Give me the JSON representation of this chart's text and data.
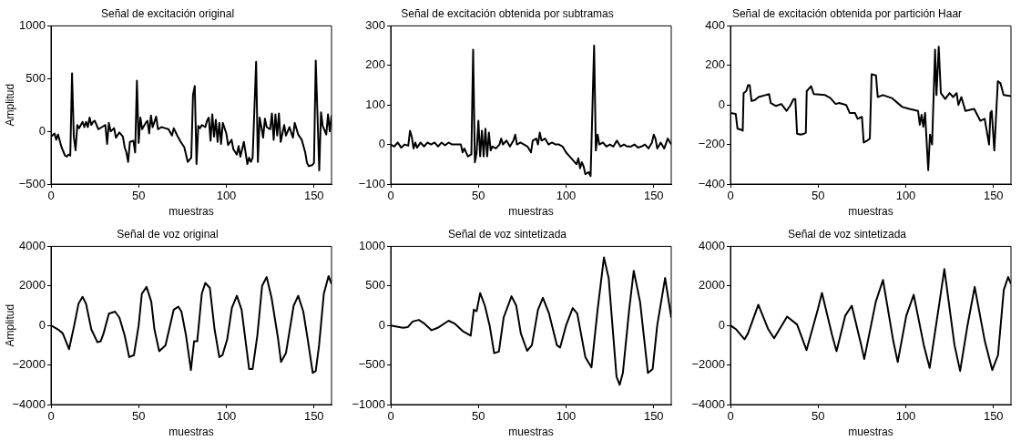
{
  "chart_data": [
    {
      "type": "line",
      "title": "Señal de excitación original",
      "xlabel": "muestras",
      "ylabel": "Amplitud",
      "color": "#000000",
      "xlim": [
        0,
        160
      ],
      "xticks": [
        0,
        50,
        100,
        150
      ],
      "ylim": [
        -500,
        1000
      ],
      "yticks": [
        -500,
        0,
        500,
        1000
      ],
      "grid": false,
      "legend": false,
      "x": [
        0,
        2,
        3,
        4,
        6,
        8,
        9,
        10,
        11,
        12,
        13,
        14,
        15,
        16,
        18,
        19,
        20,
        21,
        22,
        23,
        24,
        25,
        27,
        29,
        31,
        32,
        33,
        34,
        36,
        37,
        39,
        41,
        42,
        43,
        44,
        45,
        47,
        48,
        49,
        50,
        51,
        52,
        54,
        55,
        56,
        57,
        58,
        60,
        61,
        63,
        65,
        67,
        69,
        70,
        72,
        74,
        76,
        78,
        80,
        81,
        82,
        83,
        84,
        85,
        86,
        88,
        89,
        90,
        91,
        92,
        93,
        94,
        95,
        96,
        97,
        98,
        100,
        101,
        103,
        104,
        106,
        107,
        108,
        110,
        112,
        113,
        114,
        115,
        117,
        118,
        119,
        120,
        121,
        122,
        123,
        125,
        126,
        127,
        128,
        129,
        130,
        131,
        133,
        134,
        136,
        138,
        139,
        141,
        143,
        145,
        146,
        147,
        149,
        150,
        151,
        153,
        154,
        155,
        157,
        158,
        159,
        160
      ],
      "values": [
        -50,
        -20,
        -80,
        -30,
        -150,
        -230,
        -240,
        -220,
        -230,
        550,
        -50,
        -180,
        60,
        30,
        90,
        40,
        90,
        40,
        130,
        60,
        90,
        100,
        20,
        40,
        60,
        -120,
        80,
        0,
        30,
        -60,
        -10,
        -50,
        -150,
        -200,
        -290,
        -100,
        -90,
        -200,
        480,
        -110,
        130,
        20,
        80,
        100,
        -20,
        150,
        40,
        140,
        20,
        40,
        30,
        20,
        -40,
        30,
        -40,
        -100,
        -150,
        -290,
        -250,
        350,
        430,
        -310,
        50,
        30,
        60,
        40,
        100,
        130,
        -90,
        160,
        -50,
        110,
        -100,
        80,
        -120,
        80,
        -20,
        -130,
        -80,
        -170,
        -220,
        -140,
        -240,
        -100,
        -310,
        -250,
        -290,
        -250,
        660,
        -290,
        130,
        40,
        -60,
        120,
        40,
        20,
        170,
        -80,
        160,
        -40,
        170,
        -100,
        60,
        -40,
        40,
        -60,
        80,
        -30,
        -80,
        -200,
        -300,
        -330,
        -320,
        -300,
        670,
        -370,
        180,
        50,
        -30,
        160,
        0,
        150
      ]
    },
    {
      "type": "line",
      "title": "Señal de excitación obtenida por subtramas",
      "xlabel": "muestras",
      "color": "#000000",
      "xlim": [
        0,
        160
      ],
      "xticks": [
        0,
        50,
        100,
        150
      ],
      "ylim": [
        -100,
        300
      ],
      "yticks": [
        -100,
        0,
        100,
        200,
        300
      ],
      "grid": false,
      "legend": false,
      "x": [
        0,
        2,
        4,
        6,
        8,
        10,
        11,
        12,
        13,
        14,
        15,
        17,
        19,
        21,
        23,
        25,
        27,
        29,
        31,
        33,
        35,
        40,
        41,
        42,
        44,
        46,
        47,
        48,
        49,
        50,
        51,
        52,
        53,
        54,
        55,
        56,
        57,
        58,
        60,
        62,
        63,
        64,
        66,
        68,
        70,
        71,
        72,
        74,
        76,
        78,
        80,
        81,
        83,
        84,
        85,
        86,
        88,
        90,
        92,
        94,
        96,
        98,
        100,
        102,
        104,
        106,
        107,
        108,
        109,
        110,
        111,
        113,
        114,
        116,
        117,
        118,
        119,
        121,
        123,
        125,
        127,
        129,
        131,
        133,
        135,
        137,
        139,
        141,
        143,
        145,
        147,
        149,
        150,
        151,
        152,
        154,
        156,
        158,
        160
      ],
      "values": [
        0,
        -5,
        5,
        -8,
        0,
        -3,
        35,
        20,
        -10,
        5,
        -8,
        5,
        -5,
        5,
        0,
        5,
        -5,
        5,
        -2,
        5,
        0,
        0,
        -20,
        -10,
        -30,
        -25,
        240,
        -45,
        -20,
        60,
        -30,
        35,
        -30,
        40,
        -30,
        30,
        -15,
        -5,
        -10,
        0,
        15,
        0,
        10,
        -5,
        10,
        25,
        0,
        5,
        0,
        -5,
        -20,
        10,
        15,
        0,
        30,
        10,
        15,
        0,
        5,
        0,
        0,
        -5,
        -20,
        -30,
        -40,
        -50,
        -35,
        -60,
        -45,
        -55,
        -75,
        -70,
        -80,
        250,
        -15,
        25,
        0,
        5,
        -5,
        0,
        -5,
        10,
        -5,
        0,
        -5,
        -5,
        0,
        -8,
        -5,
        0,
        -10,
        5,
        25,
        15,
        -10,
        5,
        -10,
        15,
        0
      ]
    },
    {
      "type": "line",
      "title": "Señal de excitación obtenida por partición Haar",
      "xlabel": "muestras",
      "color": "#000000",
      "xlim": [
        0,
        160
      ],
      "xticks": [
        0,
        50,
        100,
        150
      ],
      "ylim": [
        -400,
        400
      ],
      "yticks": [
        -400,
        -200,
        0,
        200,
        400
      ],
      "grid": false,
      "legend": false,
      "x": [
        0,
        3,
        4,
        6,
        7,
        7.5,
        9,
        10,
        11,
        12,
        14,
        16,
        20,
        22,
        23,
        26,
        29,
        32,
        34,
        36,
        37,
        38,
        40,
        42,
        43,
        43.5,
        46,
        47.5,
        54,
        57,
        60,
        62,
        66,
        68,
        71,
        72.5,
        75,
        76,
        78,
        79.5,
        80.5,
        83,
        84,
        87,
        92,
        98,
        102,
        107,
        108,
        109,
        110,
        111,
        112.8,
        113.8,
        115,
        116.7,
        117.5,
        118.8,
        120,
        122.5,
        125,
        127,
        129,
        130,
        131.7,
        134,
        139,
        142.5,
        145,
        147.5,
        148.3,
        149,
        150.5,
        152.5,
        154,
        155.8,
        160
      ],
      "values": [
        -40,
        -45,
        -120,
        -125,
        -130,
        60,
        70,
        100,
        100,
        20,
        25,
        40,
        50,
        55,
        10,
        -5,
        5,
        -30,
        -5,
        30,
        30,
        -145,
        -150,
        -145,
        -140,
        70,
        95,
        55,
        50,
        35,
        5,
        10,
        0,
        -40,
        -40,
        -70,
        -60,
        -190,
        -180,
        -170,
        155,
        150,
        40,
        50,
        35,
        -10,
        -20,
        -30,
        -100,
        -50,
        -110,
        -40,
        -330,
        -150,
        -200,
        280,
        50,
        295,
        60,
        30,
        60,
        40,
        60,
        0,
        40,
        -30,
        -20,
        -80,
        -70,
        -200,
        -40,
        -30,
        -230,
        120,
        110,
        50,
        45
      ]
    },
    {
      "type": "line",
      "title": "Señal de voz original",
      "xlabel": "muestras",
      "ylabel": "Amplitud",
      "color": "#000000",
      "xlim": [
        0,
        160
      ],
      "xticks": [
        0,
        50,
        100,
        150
      ],
      "ylim": [
        -4000,
        4000
      ],
      "yticks": [
        -4000,
        -2000,
        0,
        2000,
        4000
      ],
      "grid": false,
      "legend": false,
      "x": [
        0,
        4,
        6.7,
        10.3,
        12,
        13,
        15.7,
        18,
        20,
        23,
        26.5,
        28.3,
        30,
        33,
        36.5,
        39,
        42,
        44.6,
        47.3,
        50,
        51.8,
        54.5,
        57.2,
        59,
        61.7,
        65.3,
        70,
        72.6,
        74.4,
        77,
        79.8,
        81.6,
        83.4,
        86,
        88,
        90.6,
        93.3,
        96,
        97.8,
        100.5,
        103.2,
        106,
        108.7,
        113,
        115,
        117.7,
        120.4,
        123,
        125.8,
        129.4,
        131.2,
        134,
        138.4,
        141,
        143.9,
        146.6,
        149.3,
        151,
        152.9,
        155.6,
        158.3,
        160
      ],
      "values": [
        0,
        -200,
        -400,
        -1200,
        -500,
        -100,
        1100,
        1450,
        1100,
        -200,
        -850,
        -800,
        -400,
        600,
        700,
        400,
        -500,
        -1600,
        -1500,
        0,
        1600,
        1950,
        1200,
        -200,
        -1300,
        -1000,
        800,
        950,
        700,
        -500,
        -2250,
        -800,
        -800,
        1600,
        2150,
        1900,
        -200,
        -1600,
        -1500,
        -700,
        900,
        1500,
        800,
        -2200,
        -2200,
        -500,
        2000,
        2450,
        1400,
        -600,
        -1850,
        -1400,
        1000,
        1500,
        700,
        -800,
        -2400,
        -2300,
        -1000,
        1600,
        2500,
        2100
      ]
    },
    {
      "type": "line",
      "title": "Señal de voz sintetizada",
      "xlabel": "muestras",
      "color": "#000000",
      "xlim": [
        0,
        160
      ],
      "xticks": [
        0,
        50,
        100,
        150
      ],
      "ylim": [
        -1000,
        1000
      ],
      "yticks": [
        -1000,
        -500,
        0,
        500,
        1000
      ],
      "grid": false,
      "legend": false,
      "x": [
        0,
        7,
        9.8,
        12.5,
        16,
        18.8,
        23.3,
        26.8,
        33,
        36.7,
        41,
        45.6,
        47.4,
        49,
        51,
        53.7,
        56.4,
        59,
        61.7,
        64.4,
        68.9,
        71.6,
        74.2,
        77.8,
        80.5,
        84,
        86.8,
        90.3,
        94.8,
        96.6,
        100,
        103.8,
        106.4,
        111,
        114.5,
        118,
        121.6,
        124.3,
        128.8,
        130.6,
        132.4,
        136,
        138.6,
        142.2,
        146.7,
        149.4,
        152,
        156.5,
        160
      ],
      "values": [
        0,
        -30,
        -20,
        50,
        70,
        30,
        -60,
        -30,
        60,
        20,
        -70,
        -130,
        200,
        180,
        410,
        250,
        0,
        -350,
        -330,
        100,
        370,
        250,
        -100,
        -320,
        -250,
        200,
        350,
        150,
        -250,
        -280,
        0,
        220,
        150,
        -400,
        -530,
        200,
        860,
        600,
        -650,
        -750,
        -600,
        200,
        690,
        300,
        -600,
        -550,
        0,
        600,
        100
      ]
    },
    {
      "type": "line",
      "title": "Señal de voz sintetizada",
      "xlabel": "muestras",
      "color": "#000000",
      "xlim": [
        0,
        160
      ],
      "xticks": [
        0,
        50,
        100,
        150
      ],
      "ylim": [
        -4000,
        4000
      ],
      "yticks": [
        -4000,
        -2000,
        0,
        2000,
        4000
      ],
      "grid": false,
      "legend": false,
      "x": [
        0,
        3.3,
        8,
        10,
        15.9,
        21.6,
        24.9,
        32.3,
        38,
        43.4,
        49.8,
        52.2,
        58,
        60.5,
        65.5,
        69.2,
        74.6,
        76.3,
        82.9,
        87,
        92.9,
        95.4,
        100.3,
        104.5,
        110.3,
        113.6,
        118.6,
        122,
        127.8,
        131,
        135.2,
        139.3,
        145.1,
        149.3,
        152.6,
        155.9,
        158.4,
        160
      ],
      "values": [
        0,
        -200,
        -700,
        -400,
        1050,
        -200,
        -650,
        450,
        50,
        -1250,
        800,
        1650,
        -500,
        -1300,
        500,
        1000,
        -1000,
        -1700,
        1200,
        2300,
        -800,
        -1850,
        500,
        1550,
        -1000,
        -2150,
        800,
        2850,
        -1000,
        -2300,
        0,
        1950,
        -800,
        -2250,
        -1500,
        1800,
        2450,
        2100
      ]
    }
  ]
}
